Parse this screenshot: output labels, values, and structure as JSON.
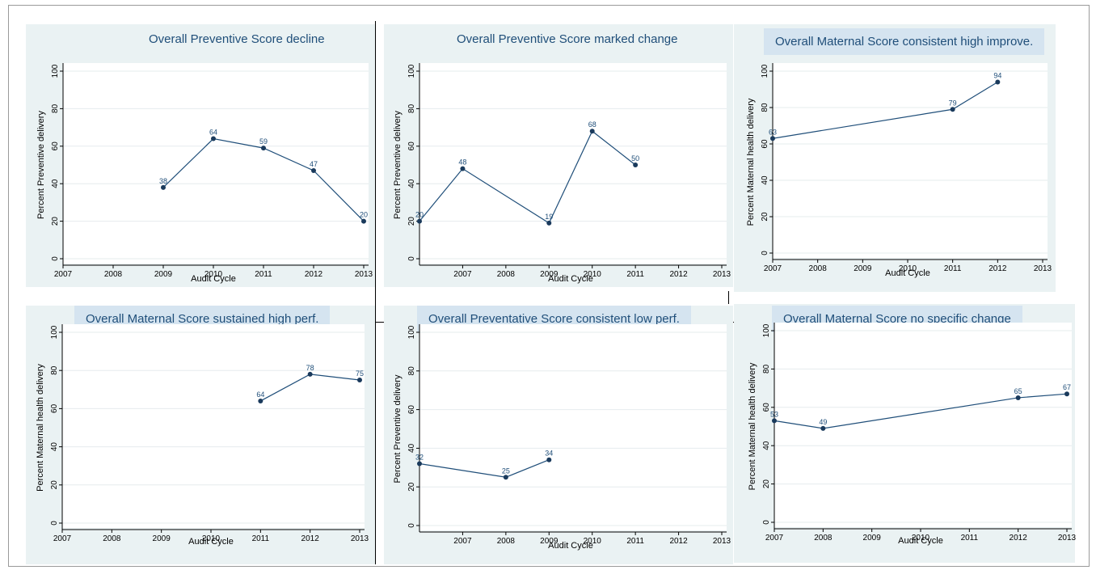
{
  "chart_data": [
    {
      "type": "line",
      "title": "Overall Preventive Score decline",
      "ylabel": "Percent Preventive delivery",
      "xlabel": "Audit Cycle",
      "xticks": [
        "2007",
        "2008",
        "2009",
        "2010",
        "2011",
        "2012",
        "2013"
      ],
      "yticks": [
        "0",
        "20",
        "40",
        "60",
        "80",
        "100"
      ],
      "xlim": [
        2007,
        2013
      ],
      "ylim": [
        0,
        100
      ],
      "grid": true,
      "x": [
        2009,
        2010,
        2011,
        2012,
        2013
      ],
      "y": [
        38,
        64,
        59,
        47,
        20
      ],
      "point_labels": [
        "38",
        "64",
        "59",
        "47",
        "20"
      ]
    },
    {
      "type": "line",
      "title": "Overall Preventive Score marked change",
      "ylabel": "Percent Preventive delivery",
      "xlabel": "Audit Cycle",
      "xticks": [
        "2007",
        "2008",
        "2009",
        "2010",
        "2011",
        "2012",
        "2013"
      ],
      "yticks": [
        "0",
        "20",
        "40",
        "60",
        "80",
        "100"
      ],
      "xlim": [
        2006,
        2013
      ],
      "ylim": [
        0,
        100
      ],
      "grid": true,
      "x": [
        2006,
        2007,
        2009,
        2010,
        2011
      ],
      "y": [
        20,
        48,
        19,
        68,
        50
      ],
      "point_labels": [
        "20",
        "48",
        "19",
        "68",
        "50"
      ]
    },
    {
      "type": "line",
      "title": "Overall Maternal Score consistent high improve.",
      "ylabel": "Percent Maternal health delivery",
      "xlabel": "Audit Cycle",
      "xticks": [
        "2007",
        "2008",
        "2009",
        "2010",
        "2011",
        "2012",
        "2013"
      ],
      "yticks": [
        "0",
        "20",
        "40",
        "60",
        "80",
        "100"
      ],
      "xlim": [
        2007,
        2013
      ],
      "ylim": [
        0,
        100
      ],
      "grid": true,
      "x": [
        2007,
        2011,
        2012
      ],
      "y": [
        63,
        79,
        94
      ],
      "point_labels": [
        "63",
        "79",
        "94"
      ]
    },
    {
      "type": "line",
      "title": "Overall Maternal Score sustained high perf.",
      "ylabel": "Percent Maternal health delivery",
      "xlabel": "Audit Cycle",
      "xticks": [
        "2007",
        "2008",
        "2009",
        "2010",
        "2011",
        "2012",
        "2013"
      ],
      "yticks": [
        "0",
        "20",
        "40",
        "60",
        "80",
        "100"
      ],
      "xlim": [
        2007,
        2013
      ],
      "ylim": [
        0,
        100
      ],
      "grid": true,
      "x": [
        2011,
        2012,
        2013
      ],
      "y": [
        64,
        78,
        75
      ],
      "point_labels": [
        "64",
        "78",
        "75"
      ]
    },
    {
      "type": "line",
      "title": "Overall Preventative Score consistent low perf.",
      "ylabel": "Percent Preventive delivery",
      "xlabel": "Audit Cycle",
      "xticks": [
        "2007",
        "2008",
        "2009",
        "2010",
        "2011",
        "2012",
        "2013"
      ],
      "yticks": [
        "0",
        "20",
        "40",
        "60",
        "80",
        "100"
      ],
      "xlim": [
        2006,
        2013
      ],
      "ylim": [
        0,
        100
      ],
      "grid": true,
      "x": [
        2006,
        2008,
        2009
      ],
      "y": [
        32,
        25,
        34
      ],
      "point_labels": [
        "32",
        "25",
        "34"
      ]
    },
    {
      "type": "line",
      "title": "Overall Maternal Score no specific change",
      "ylabel": "Percent Maternal health delivery",
      "xlabel": "Audit Cycle",
      "xticks": [
        "2007",
        "2008",
        "2009",
        "2010",
        "2011",
        "2012",
        "2013"
      ],
      "yticks": [
        "0",
        "20",
        "40",
        "60",
        "80",
        "100"
      ],
      "xlim": [
        2007,
        2013
      ],
      "ylim": [
        0,
        100
      ],
      "grid": true,
      "x": [
        2007,
        2008,
        2012,
        2013
      ],
      "y": [
        53,
        49,
        65,
        67
      ],
      "point_labels": [
        "53",
        "49",
        "65",
        "67"
      ]
    }
  ],
  "colors": {
    "line": "#1f4e79",
    "marker": "#1a3a5c",
    "title_text": "#1f4e79",
    "panel_bg": "#eaf2f3",
    "title_box": "#d5e4f0"
  }
}
